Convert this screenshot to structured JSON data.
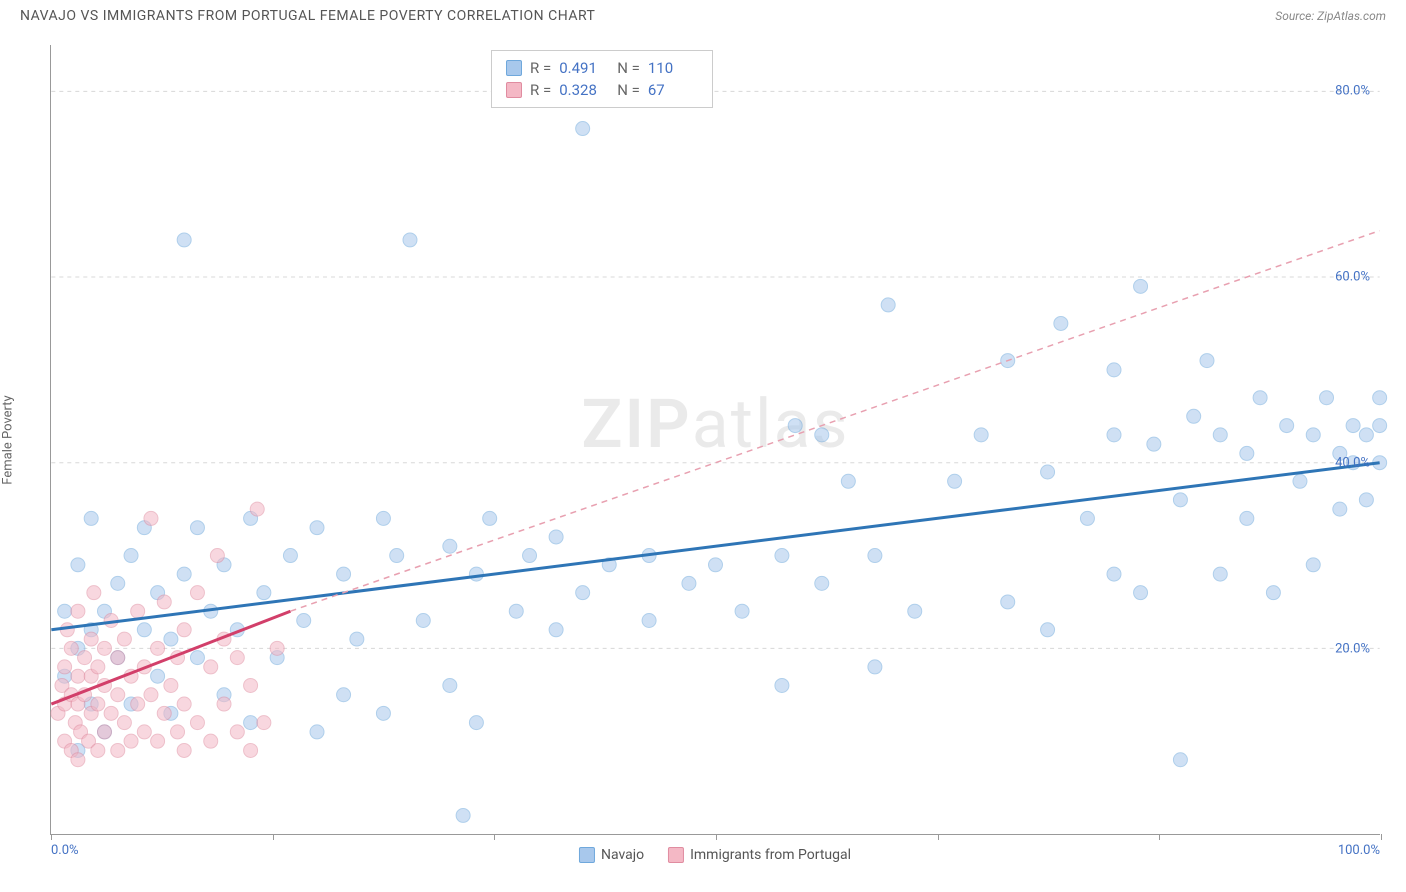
{
  "header": {
    "title": "NAVAJO VS IMMIGRANTS FROM PORTUGAL FEMALE POVERTY CORRELATION CHART",
    "source": "Source: ZipAtlas.com"
  },
  "watermark": {
    "zip": "ZIP",
    "atlas": "atlas"
  },
  "axes": {
    "y_label": "Female Poverty",
    "xlim": [
      0,
      100
    ],
    "ylim": [
      0,
      85
    ],
    "y_ticks": [
      20,
      40,
      60,
      80
    ],
    "y_tick_labels": [
      "20.0%",
      "40.0%",
      "60.0%",
      "80.0%"
    ],
    "x_tick_marks": [
      0,
      16.67,
      33.33,
      50,
      66.67,
      83.33,
      100
    ],
    "x_min_label": "0.0%",
    "x_max_label": "100.0%",
    "grid_color": "#d8d8d8"
  },
  "stats": {
    "series1": {
      "R_label": "R =",
      "R": "0.491",
      "N_label": "N =",
      "N": "110"
    },
    "series2": {
      "R_label": "R =",
      "R": "0.328",
      "N_label": "N =",
      "N": " 67"
    }
  },
  "legend": {
    "series1": "Navajo",
    "series2": "Immigrants from Portugal"
  },
  "colors": {
    "blue_fill": "#a8c8ec",
    "blue_stroke": "#6fa8dc",
    "blue_line": "#2e75b6",
    "pink_fill": "#f4b8c5",
    "pink_stroke": "#e08ca0",
    "pink_line": "#d23f6a",
    "pink_dash": "#e8a0b0",
    "axis_text": "#4472c4",
    "background": "#ffffff"
  },
  "style": {
    "marker_radius": 7,
    "marker_opacity": 0.55,
    "trend_line_width": 3,
    "dash_pattern": "6,5"
  },
  "chart": {
    "type": "scatter",
    "series": [
      {
        "name": "Navajo",
        "color_key": "blue",
        "trend": {
          "x1": 0,
          "y1": 22,
          "x2": 100,
          "y2": 40
        },
        "points": [
          [
            1,
            17
          ],
          [
            1,
            24
          ],
          [
            2,
            9
          ],
          [
            2,
            20
          ],
          [
            2,
            29
          ],
          [
            3,
            14
          ],
          [
            3,
            22
          ],
          [
            3,
            34
          ],
          [
            4,
            11
          ],
          [
            4,
            24
          ],
          [
            5,
            19
          ],
          [
            5,
            27
          ],
          [
            6,
            14
          ],
          [
            6,
            30
          ],
          [
            7,
            22
          ],
          [
            7,
            33
          ],
          [
            8,
            17
          ],
          [
            8,
            26
          ],
          [
            9,
            13
          ],
          [
            9,
            21
          ],
          [
            10,
            28
          ],
          [
            10,
            64
          ],
          [
            11,
            19
          ],
          [
            11,
            33
          ],
          [
            12,
            24
          ],
          [
            13,
            15
          ],
          [
            13,
            29
          ],
          [
            14,
            22
          ],
          [
            15,
            12
          ],
          [
            15,
            34
          ],
          [
            16,
            26
          ],
          [
            17,
            19
          ],
          [
            18,
            30
          ],
          [
            19,
            23
          ],
          [
            20,
            11
          ],
          [
            20,
            33
          ],
          [
            22,
            15
          ],
          [
            22,
            28
          ],
          [
            23,
            21
          ],
          [
            25,
            13
          ],
          [
            25,
            34
          ],
          [
            26,
            30
          ],
          [
            27,
            64
          ],
          [
            28,
            23
          ],
          [
            30,
            16
          ],
          [
            30,
            31
          ],
          [
            31,
            2
          ],
          [
            32,
            12
          ],
          [
            32,
            28
          ],
          [
            33,
            34
          ],
          [
            35,
            24
          ],
          [
            36,
            30
          ],
          [
            38,
            22
          ],
          [
            38,
            32
          ],
          [
            40,
            26
          ],
          [
            40,
            76
          ],
          [
            42,
            29
          ],
          [
            45,
            23
          ],
          [
            45,
            30
          ],
          [
            48,
            27
          ],
          [
            50,
            29
          ],
          [
            52,
            24
          ],
          [
            55,
            16
          ],
          [
            55,
            30
          ],
          [
            56,
            44
          ],
          [
            58,
            27
          ],
          [
            58,
            43
          ],
          [
            60,
            38
          ],
          [
            62,
            18
          ],
          [
            62,
            30
          ],
          [
            63,
            57
          ],
          [
            65,
            24
          ],
          [
            68,
            38
          ],
          [
            70,
            43
          ],
          [
            72,
            25
          ],
          [
            72,
            51
          ],
          [
            75,
            22
          ],
          [
            75,
            39
          ],
          [
            76,
            55
          ],
          [
            78,
            34
          ],
          [
            80,
            28
          ],
          [
            80,
            43
          ],
          [
            80,
            50
          ],
          [
            82,
            26
          ],
          [
            82,
            59
          ],
          [
            83,
            42
          ],
          [
            85,
            8
          ],
          [
            85,
            36
          ],
          [
            86,
            45
          ],
          [
            87,
            51
          ],
          [
            88,
            28
          ],
          [
            88,
            43
          ],
          [
            90,
            34
          ],
          [
            90,
            41
          ],
          [
            91,
            47
          ],
          [
            92,
            26
          ],
          [
            93,
            44
          ],
          [
            94,
            38
          ],
          [
            95,
            29
          ],
          [
            95,
            43
          ],
          [
            96,
            47
          ],
          [
            97,
            35
          ],
          [
            97,
            41
          ],
          [
            98,
            44
          ],
          [
            98,
            40
          ],
          [
            99,
            36
          ],
          [
            99,
            43
          ],
          [
            100,
            40
          ],
          [
            100,
            44
          ],
          [
            100,
            47
          ]
        ]
      },
      {
        "name": "Immigrants from Portugal",
        "color_key": "pink",
        "trend": {
          "x1": 0,
          "y1": 14,
          "x2": 18,
          "y2": 24
        },
        "trend_dashed": {
          "x1": 18,
          "y1": 24,
          "x2": 100,
          "y2": 65
        },
        "points": [
          [
            0.5,
            13
          ],
          [
            0.8,
            16
          ],
          [
            1,
            10
          ],
          [
            1,
            14
          ],
          [
            1,
            18
          ],
          [
            1.2,
            22
          ],
          [
            1.5,
            9
          ],
          [
            1.5,
            15
          ],
          [
            1.5,
            20
          ],
          [
            1.8,
            12
          ],
          [
            2,
            8
          ],
          [
            2,
            14
          ],
          [
            2,
            17
          ],
          [
            2,
            24
          ],
          [
            2.2,
            11
          ],
          [
            2.5,
            15
          ],
          [
            2.5,
            19
          ],
          [
            2.8,
            10
          ],
          [
            3,
            13
          ],
          [
            3,
            17
          ],
          [
            3,
            21
          ],
          [
            3.2,
            26
          ],
          [
            3.5,
            9
          ],
          [
            3.5,
            14
          ],
          [
            3.5,
            18
          ],
          [
            4,
            11
          ],
          [
            4,
            16
          ],
          [
            4,
            20
          ],
          [
            4.5,
            13
          ],
          [
            4.5,
            23
          ],
          [
            5,
            9
          ],
          [
            5,
            15
          ],
          [
            5,
            19
          ],
          [
            5.5,
            12
          ],
          [
            5.5,
            21
          ],
          [
            6,
            10
          ],
          [
            6,
            17
          ],
          [
            6.5,
            14
          ],
          [
            6.5,
            24
          ],
          [
            7,
            11
          ],
          [
            7,
            18
          ],
          [
            7.5,
            15
          ],
          [
            7.5,
            34
          ],
          [
            8,
            10
          ],
          [
            8,
            20
          ],
          [
            8.5,
            13
          ],
          [
            8.5,
            25
          ],
          [
            9,
            16
          ],
          [
            9.5,
            11
          ],
          [
            9.5,
            19
          ],
          [
            10,
            9
          ],
          [
            10,
            14
          ],
          [
            10,
            22
          ],
          [
            11,
            12
          ],
          [
            11,
            26
          ],
          [
            12,
            10
          ],
          [
            12,
            18
          ],
          [
            12.5,
            30
          ],
          [
            13,
            14
          ],
          [
            13,
            21
          ],
          [
            14,
            11
          ],
          [
            14,
            19
          ],
          [
            15,
            9
          ],
          [
            15,
            16
          ],
          [
            15.5,
            35
          ],
          [
            16,
            12
          ],
          [
            17,
            20
          ]
        ]
      }
    ]
  }
}
